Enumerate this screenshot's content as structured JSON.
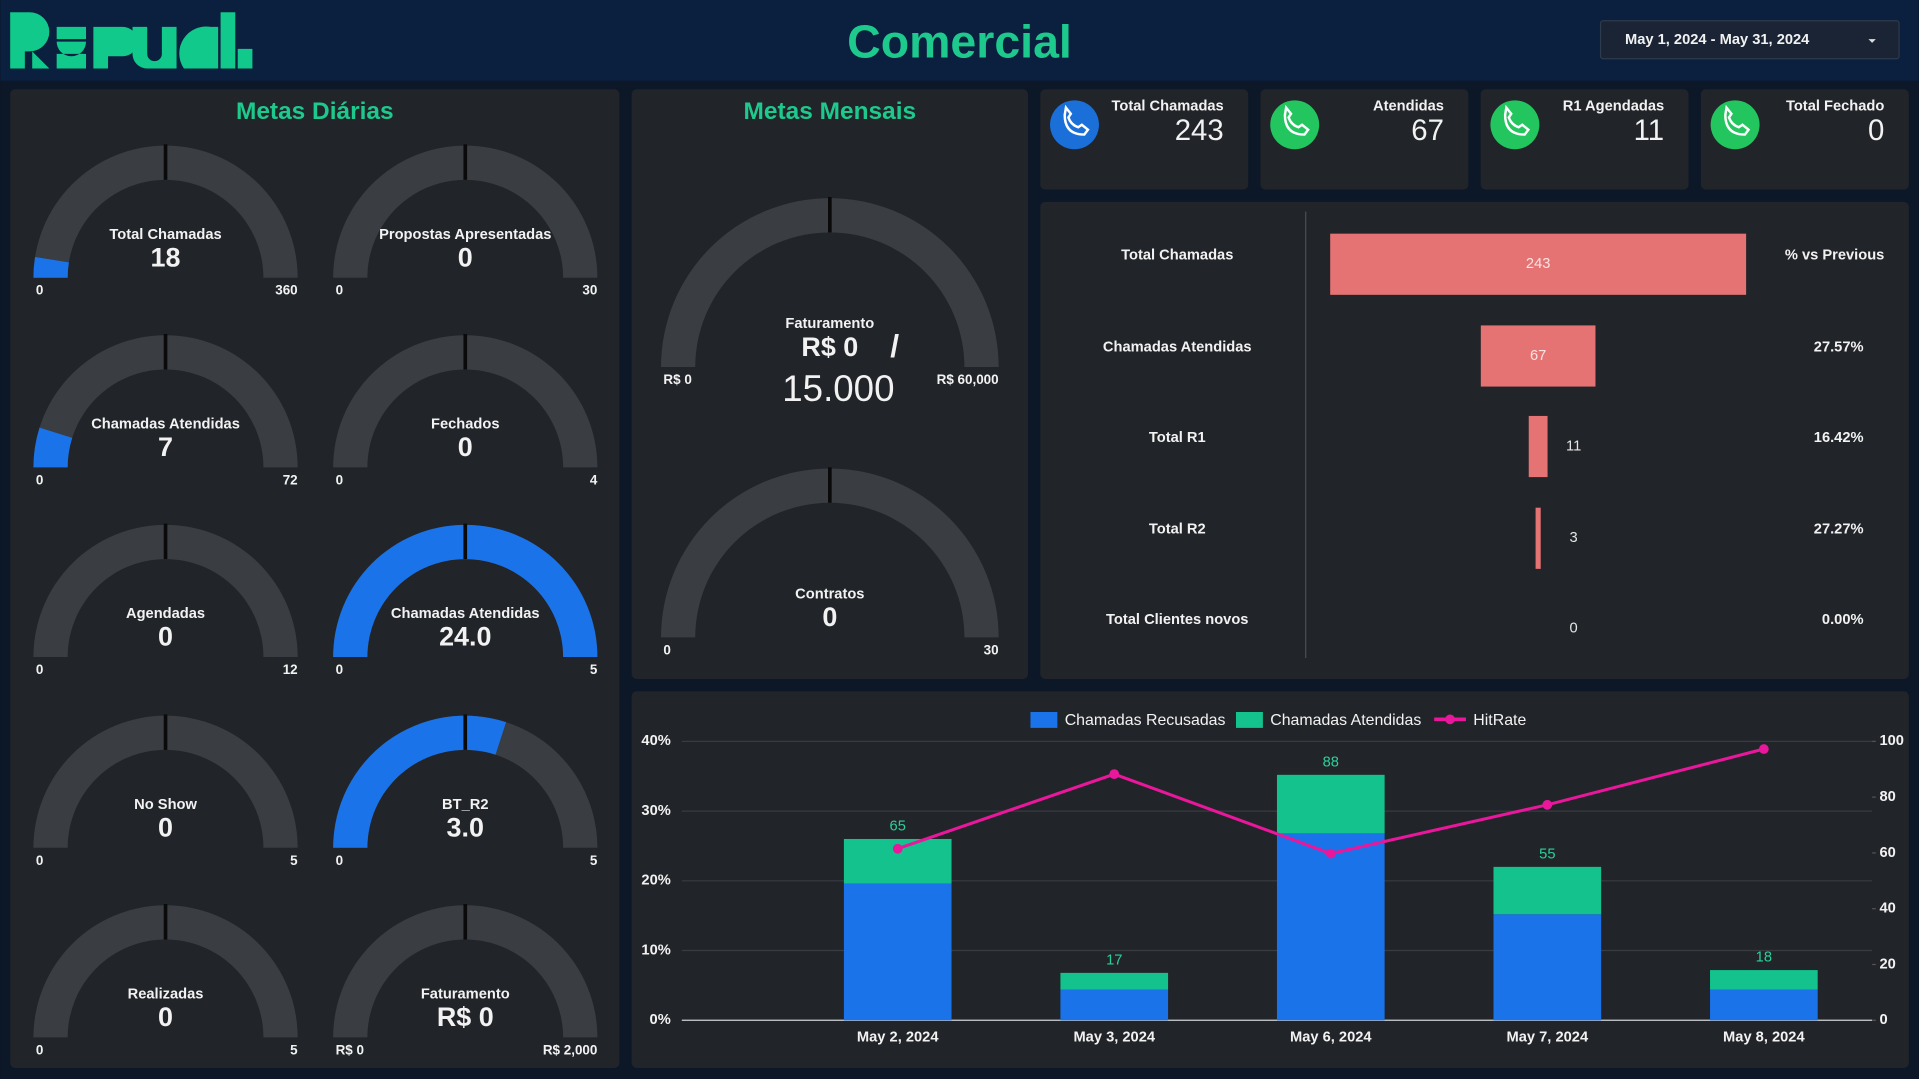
{
  "header": {
    "title": "Comercial",
    "date_range": "May 1, 2024 - May 31, 2024"
  },
  "panels": {
    "daily": "Metas Diárias",
    "monthly": "Metas Mensais"
  },
  "kpis": [
    {
      "label": "Total Chamadas",
      "value": 243
    },
    {
      "label": "Atendidas",
      "value": 67
    },
    {
      "label": "R1 Agendadas",
      "value": 11
    },
    {
      "label": "Total Fechado",
      "value": 0
    }
  ],
  "chart_data": [
    {
      "type": "gauge",
      "title": "Total Chamadas",
      "value": 18,
      "target": 180,
      "ylim": [
        0,
        360
      ],
      "yticks": [
        0,
        360
      ],
      "color": "#1a73e8",
      "track_color": "#3a3d41"
    },
    {
      "type": "gauge",
      "title": "Propostas Apresentadas",
      "value": 0,
      "target": 15,
      "ylim": [
        0,
        30
      ],
      "yticks": [
        0,
        30
      ],
      "color": "#1a73e8",
      "track_color": "#3a3d41"
    },
    {
      "type": "gauge",
      "title": "Chamadas Atendidas",
      "value": 7,
      "target": 36,
      "ylim": [
        0,
        72
      ],
      "yticks": [
        0,
        72
      ],
      "color": "#1a73e8",
      "track_color": "#3a3d41"
    },
    {
      "type": "gauge",
      "title": "Fechados",
      "value": 0,
      "target": 2,
      "ylim": [
        0,
        4
      ],
      "yticks": [
        0,
        4
      ],
      "color": "#1a73e8",
      "track_color": "#3a3d41"
    },
    {
      "type": "gauge",
      "title": "Agendadas",
      "value": 0,
      "target": 6,
      "ylim": [
        0,
        12
      ],
      "yticks": [
        0,
        12
      ],
      "color": "#1a73e8",
      "track_color": "#3a3d41"
    },
    {
      "type": "gauge",
      "title": "Chamadas Atendidas",
      "value": 24,
      "value_label": "24.0",
      "target": 2.5,
      "ylim": [
        0,
        5
      ],
      "yticks": [
        0,
        5
      ],
      "color": "#1a73e8",
      "track_color": "#3a3d41"
    },
    {
      "type": "gauge",
      "title": "No Show",
      "value": 0,
      "target": 2.5,
      "ylim": [
        0,
        5
      ],
      "yticks": [
        0,
        5
      ],
      "color": "#1a73e8",
      "track_color": "#3a3d41"
    },
    {
      "type": "gauge",
      "title": "BT_R2",
      "value": 3,
      "value_label": "3.0",
      "target": 2.5,
      "ylim": [
        0,
        5
      ],
      "yticks": [
        0,
        5
      ],
      "color": "#1a73e8",
      "track_color": "#3a3d41"
    },
    {
      "type": "gauge",
      "title": "Realizadas",
      "value": 0,
      "target": 2.5,
      "ylim": [
        0,
        5
      ],
      "yticks": [
        0,
        5
      ],
      "color": "#1a73e8",
      "track_color": "#3a3d41"
    },
    {
      "type": "gauge",
      "title": "Faturamento",
      "value": 0,
      "value_label": "R$ 0",
      "target": 1000,
      "ylim": [
        0,
        2000
      ],
      "yticks": [
        {
          "value": 0,
          "label": "R$ 0"
        },
        {
          "value": 2000,
          "label": "R$ 2,000"
        }
      ],
      "color": "#1a73e8",
      "track_color": "#3a3d41"
    },
    {
      "type": "gauge",
      "title": "Faturamento",
      "value": 0,
      "value_label": "R$ 0",
      "separator": "/",
      "goal": "15.000",
      "target": 30000,
      "ylim": [
        0,
        60000
      ],
      "yticks": [
        {
          "value": 0,
          "label": "R$ 0"
        },
        {
          "value": 60000,
          "label": "R$ 60,000"
        }
      ],
      "color": "#1a73e8",
      "track_color": "#3a3d41"
    },
    {
      "type": "gauge",
      "title": "Contratos",
      "value": 0,
      "target": 15,
      "ylim": [
        0,
        30
      ],
      "yticks": [
        0,
        30
      ],
      "color": "#1a73e8",
      "track_color": "#3a3d41"
    },
    {
      "type": "funnel",
      "categories": [
        "Total Chamadas",
        "Chamadas Atendidas",
        "Total R1",
        "Total R2",
        "Total Clientes novos"
      ],
      "values": [
        243,
        67,
        11,
        3,
        0
      ],
      "color": "#e57373",
      "comparison": {
        "title": "% vs Previous",
        "values": [
          null,
          27.57,
          16.42,
          27.27,
          0
        ],
        "value_labels": [
          null,
          "27.57%",
          "16.42%",
          "27.27%",
          "0.00%"
        ]
      }
    },
    {
      "type": "combo",
      "categories": [
        "May 2, 2024",
        "May 3, 2024",
        "May 6, 2024",
        "May 7, 2024",
        "May 8, 2024"
      ],
      "series": [
        {
          "name": "Chamadas Recusadas",
          "type": "bar",
          "axis": "y2",
          "color": "#1a73e8",
          "values": [
            49,
            11,
            67,
            38,
            11
          ]
        },
        {
          "name": "Chamadas Atendidas",
          "type": "bar",
          "axis": "y2",
          "color": "#13c28d",
          "values": [
            16,
            6,
            21,
            17,
            7
          ]
        },
        {
          "name": "HitRate",
          "type": "line",
          "color": "#e8179b",
          "values": [
            24.6,
            35.3,
            23.9,
            30.9,
            38.9
          ]
        }
      ],
      "stacked": true,
      "total_labels": [
        65,
        17,
        88,
        55,
        18
      ],
      "ylim": [
        0,
        40
      ],
      "yticks": [
        {
          "value": 0,
          "label": "0%"
        },
        {
          "value": 10,
          "label": "10%"
        },
        {
          "value": 20,
          "label": "20%"
        },
        {
          "value": 30,
          "label": "30%"
        },
        {
          "value": 40,
          "label": "40%"
        }
      ],
      "y2lim": [
        0,
        100
      ],
      "y2ticks": [
        0,
        20,
        40,
        60,
        80,
        100
      ],
      "grid": true,
      "legend": "top"
    }
  ]
}
